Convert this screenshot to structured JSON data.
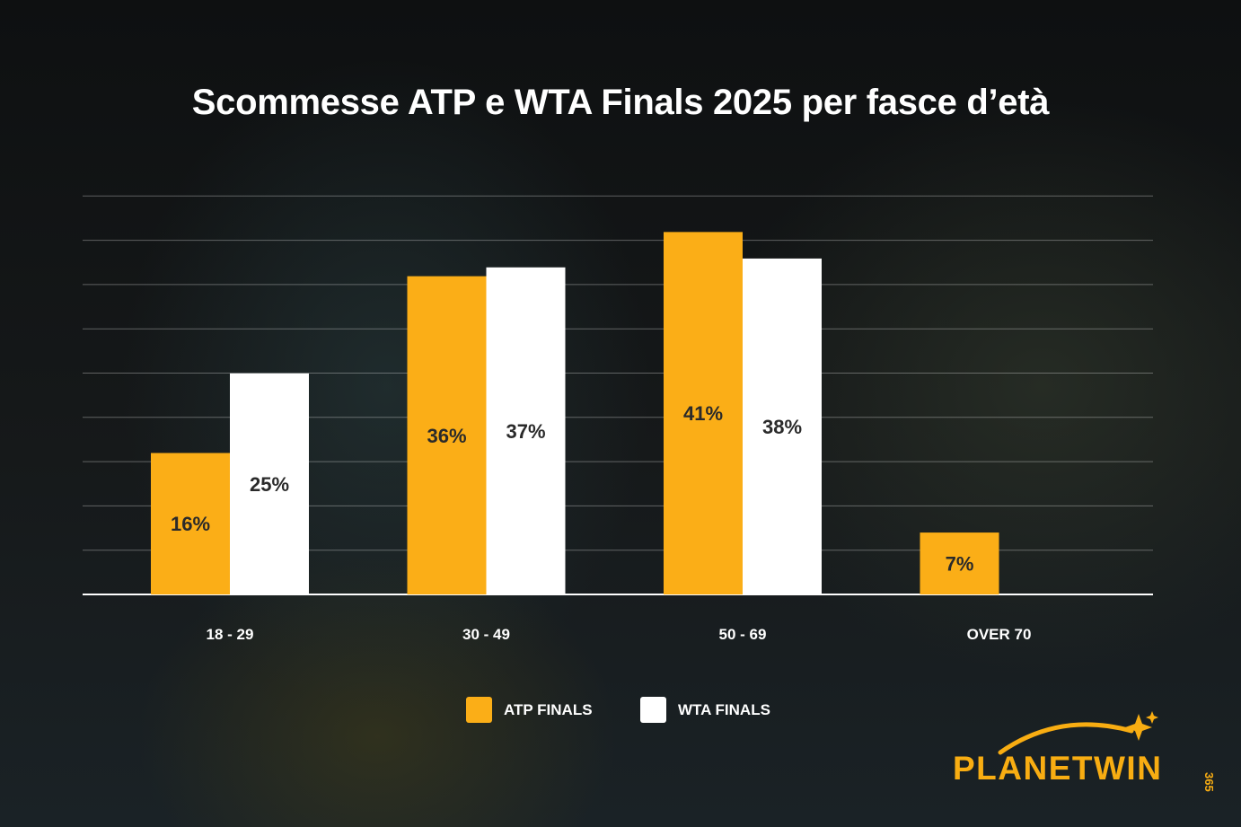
{
  "title": "Scommesse ATP e WTA Finals 2025 per fasce d’età",
  "chart_data": {
    "type": "bar",
    "categories": [
      "18 - 29",
      "30 - 49",
      "50 - 69",
      "OVER 70"
    ],
    "series": [
      {
        "name": "ATP FINALS",
        "values": [
          16,
          36,
          41,
          7
        ],
        "labels": [
          "16%",
          "36%",
          "41%",
          "7%"
        ],
        "color": "#fbae17"
      },
      {
        "name": "WTA FINALS",
        "values": [
          25,
          37,
          38,
          null
        ],
        "labels": [
          "25%",
          "37%",
          "38%",
          ""
        ],
        "color": "#ffffff"
      }
    ],
    "ylim": [
      0,
      45
    ],
    "grid": true,
    "legend": "bottom-center"
  },
  "legend": {
    "atp_label": "ATP FINALS",
    "wta_label": "WTA FINALS"
  },
  "logo": {
    "text": "PLANETWIN",
    "suffix": "365",
    "color": "#f8ad12"
  }
}
